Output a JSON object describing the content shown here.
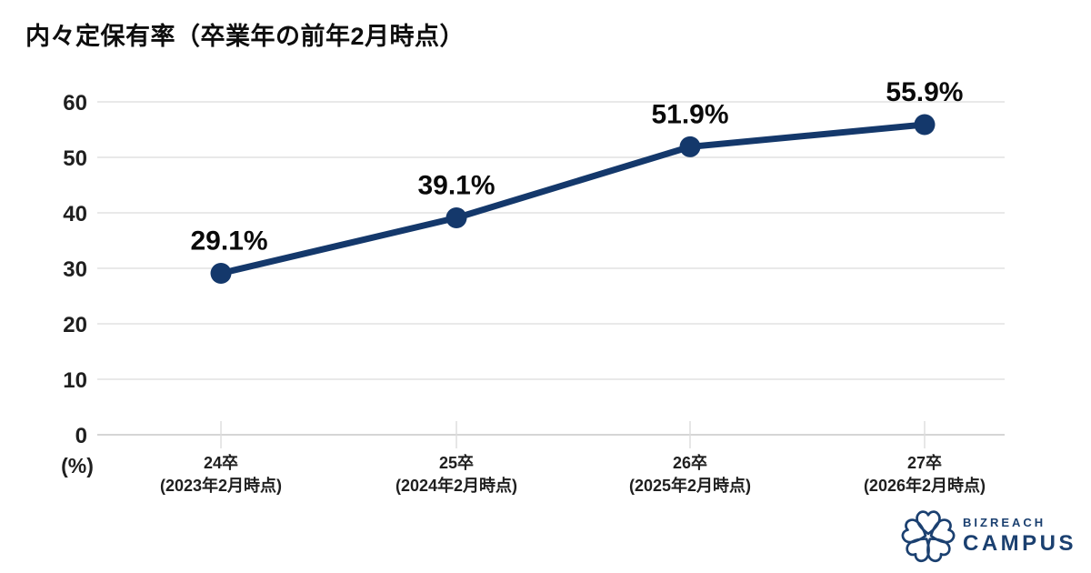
{
  "title": "内々定保有率（卒業年の前年2月時点）",
  "chart_data": {
    "type": "line",
    "title": "内々定保有率（卒業年の前年2月時点）",
    "categories": [
      {
        "line1": "24卒",
        "line2": "(2023年2月時点)"
      },
      {
        "line1": "25卒",
        "line2": "(2024年2月時点)"
      },
      {
        "line1": "26卒",
        "line2": "(2025年2月時点)"
      },
      {
        "line1": "27卒",
        "line2": "(2026年2月時点)"
      }
    ],
    "series": [
      {
        "name": "内々定保有率",
        "values": [
          29.1,
          39.1,
          51.9,
          55.9
        ]
      }
    ],
    "data_labels": [
      "29.1%",
      "39.1%",
      "51.9%",
      "55.9%"
    ],
    "y_axis": {
      "unit": "(%)",
      "min": 0,
      "max": 60,
      "step": 10,
      "ticks": [
        "0",
        "10",
        "20",
        "30",
        "40",
        "50",
        "60"
      ]
    },
    "grid": true,
    "legend_position": "none",
    "line_color": "#14386b",
    "marker_color": "#14386b",
    "data_label_color": "#0a0a0a",
    "axis_label_color": "#1f1f1f",
    "gridline_color": "#dcdcdc",
    "zero_line_color": "#c7c7c7"
  },
  "logo": {
    "brand_top": "BIZREACH",
    "brand_bottom": "CAMPUS",
    "color": "#1b4070",
    "icon": "flower-icon"
  }
}
